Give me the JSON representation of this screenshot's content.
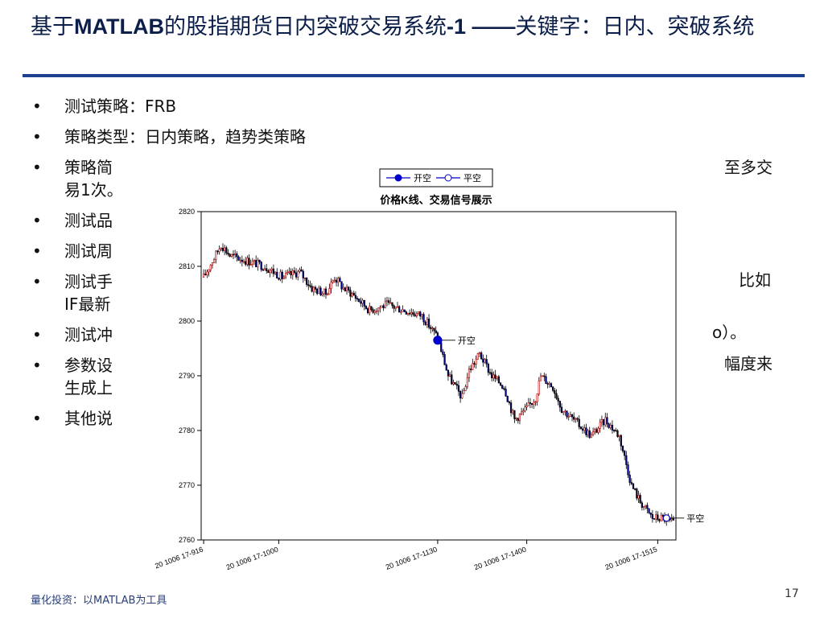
{
  "slide": {
    "title_pre": "基于",
    "title_bold1": "MATLAB",
    "title_mid": "的股指期货日内突破交易系统",
    "title_bold2": "-1 ——",
    "title_post": "关键字：日内、突破系统",
    "footer": "量化投资：以MATLAB为工具",
    "page_number": "17"
  },
  "bullets": [
    "测试策略：FRB",
    "策略类型：日内策略，趋势类策略",
    "策略简",
    "测试品",
    "测试周",
    "测试手",
    "测试冲",
    "参数设",
    "其他说"
  ],
  "bullet_continuations": {
    "b3_line2": "易1次。",
    "b6_line2": "IF最新",
    "b8_line2": "生成上"
  },
  "right_fragments": {
    "b3": "至多交",
    "b6": "比如",
    "b7": "o）。",
    "b8": "幅度来"
  },
  "chart_data": {
    "type": "line",
    "title": "价格K线、交易信号展示",
    "legend": {
      "placement": "top-center",
      "entries": [
        "开空",
        "平空"
      ]
    },
    "ylim": [
      2760,
      2820
    ],
    "yticks": [
      2760,
      2770,
      2780,
      2790,
      2800,
      2810,
      2820
    ],
    "xticks": [
      {
        "i": 0,
        "label": "20 1006 17-916"
      },
      {
        "i": 43,
        "label": "20 1006 17-1000"
      },
      {
        "i": 134,
        "label": "20 1006 17-1130"
      },
      {
        "i": 185,
        "label": "20 1006 17-1400"
      },
      {
        "i": 260,
        "label": "20 1006 17-1515"
      }
    ],
    "n_bars": 270,
    "price_path": [
      [
        0,
        2808
      ],
      [
        5,
        2811
      ],
      [
        10,
        2814
      ],
      [
        15,
        2812
      ],
      [
        25,
        2811
      ],
      [
        35,
        2810
      ],
      [
        45,
        2808
      ],
      [
        55,
        2809
      ],
      [
        62,
        2806
      ],
      [
        70,
        2805
      ],
      [
        75,
        2808
      ],
      [
        80,
        2806
      ],
      [
        85,
        2805
      ],
      [
        95,
        2802
      ],
      [
        105,
        2803
      ],
      [
        115,
        2802
      ],
      [
        125,
        2801
      ],
      [
        134,
        2797
      ],
      [
        140,
        2790
      ],
      [
        148,
        2786
      ],
      [
        152,
        2791
      ],
      [
        158,
        2794
      ],
      [
        165,
        2790
      ],
      [
        172,
        2788
      ],
      [
        178,
        2782
      ],
      [
        185,
        2784
      ],
      [
        190,
        2786
      ],
      [
        193,
        2790
      ],
      [
        200,
        2788
      ],
      [
        205,
        2784
      ],
      [
        215,
        2781
      ],
      [
        222,
        2779
      ],
      [
        230,
        2782
      ],
      [
        238,
        2779
      ],
      [
        245,
        2770
      ],
      [
        250,
        2767
      ],
      [
        257,
        2764
      ],
      [
        263,
        2764
      ],
      [
        269,
        2763
      ]
    ],
    "signals": [
      {
        "type": "开空",
        "i": 134,
        "price": 2796.5
      },
      {
        "type": "平空",
        "i": 265,
        "price": 2764
      }
    ]
  }
}
